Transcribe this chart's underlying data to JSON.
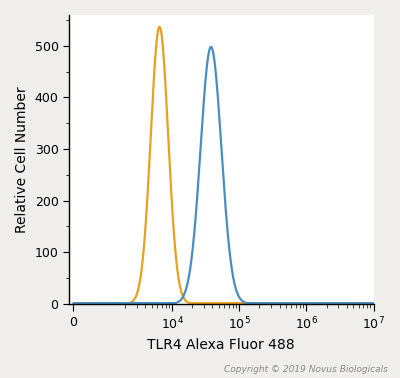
{
  "orange_peak_x": 6500,
  "orange_peak_y": 537,
  "orange_sigma": 0.13,
  "blue_peak_x": 38000,
  "blue_peak_y": 498,
  "blue_sigma": 0.155,
  "orange_color": "#E8A020",
  "blue_color": "#4A8DC0",
  "xlabel": "TLR4 Alexa Fluor 488",
  "ylabel": "Relative Cell Number",
  "ylim": [
    0,
    560
  ],
  "yticks": [
    0,
    100,
    200,
    300,
    400,
    500
  ],
  "xtick_positions": [
    0,
    10000,
    100000,
    1000000,
    10000000
  ],
  "xtick_labels": [
    "0",
    "$10^4$",
    "$10^5$",
    "$10^6$",
    "$10^7$"
  ],
  "copyright_text": "Copyright © 2019 Novus Biologicals",
  "background_color": "#f0eeea",
  "plot_bg_color": "#ffffff",
  "linewidth": 1.6,
  "linthresh": 500,
  "linscale": 0.15,
  "xlim_left": -200,
  "xlim_right": 10000000
}
